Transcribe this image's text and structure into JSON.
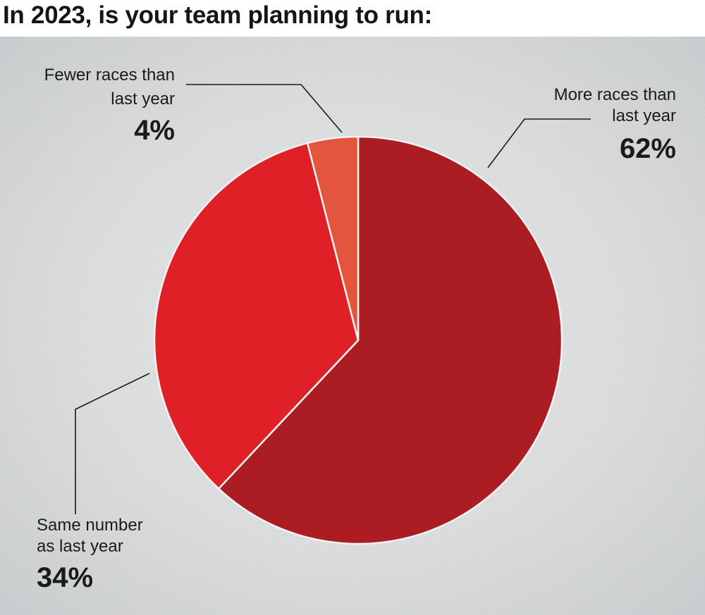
{
  "title": "In 2023, is your team planning to run:",
  "colors": {
    "more": "#ab1c23",
    "same": "#e02027",
    "fewer": "#e3553d",
    "separator": "#f3f3f3",
    "text": "#1a1a1a"
  },
  "chart_data": {
    "type": "pie",
    "title": "In 2023, is your team planning to run:",
    "start": "12 o'clock, clockwise",
    "slices": [
      {
        "key": "more",
        "label_lines": [
          "More races than",
          "last year"
        ],
        "pct_label": "62%",
        "value": 62
      },
      {
        "key": "same",
        "label_lines": [
          "Same number",
          "as last year"
        ],
        "pct_label": "34%",
        "value": 34
      },
      {
        "key": "fewer",
        "label_lines": [
          "Fewer races than",
          "last year"
        ],
        "pct_label": "4%",
        "value": 4
      }
    ]
  }
}
